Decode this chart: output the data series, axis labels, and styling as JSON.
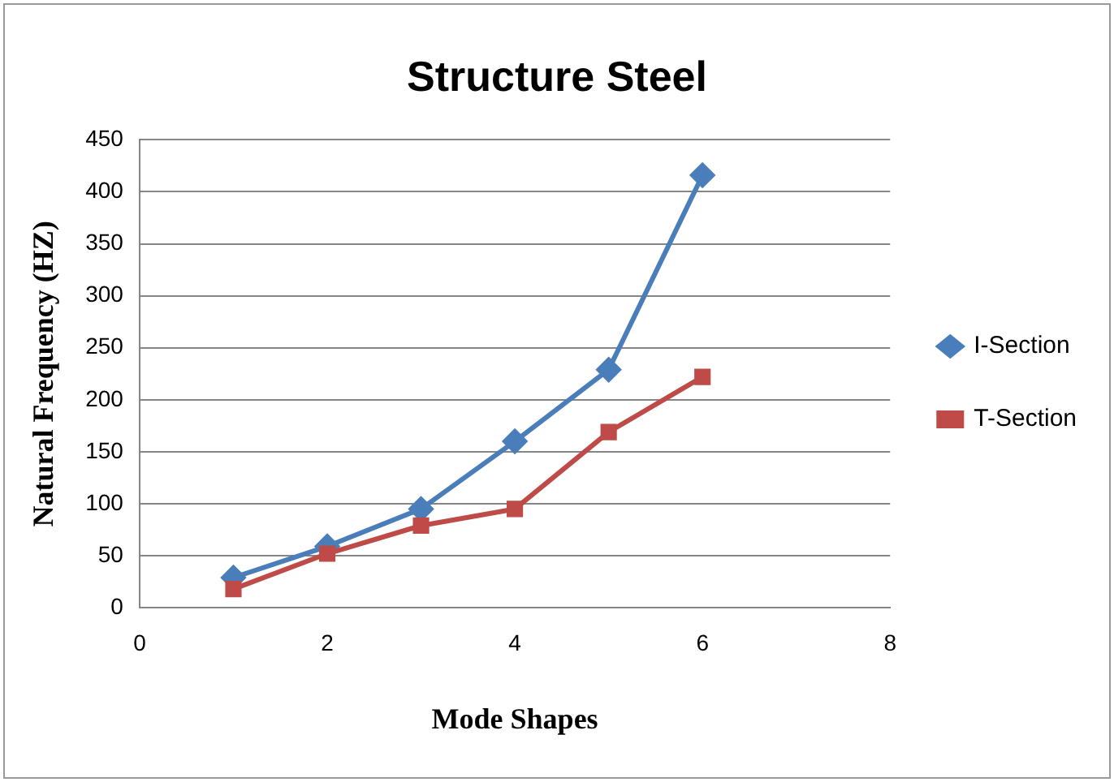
{
  "chart_data": {
    "type": "line",
    "title": "Structure Steel",
    "xlabel": "Mode Shapes",
    "ylabel": "Natural Frequency (HZ)",
    "x": [
      1,
      2,
      3,
      4,
      5,
      6
    ],
    "series": [
      {
        "name": "I-Section",
        "color": "#4a7ebb",
        "marker": "diamond",
        "values": [
          29,
          59,
          95,
          160,
          229,
          416
        ]
      },
      {
        "name": "T-Section",
        "color": "#be4b48",
        "marker": "square",
        "values": [
          18,
          52,
          79,
          95,
          169,
          222
        ]
      }
    ],
    "xlim": [
      0,
      8
    ],
    "xticks": [
      0,
      2,
      4,
      6,
      8
    ],
    "ylim": [
      0,
      450
    ],
    "yticks": [
      0,
      50,
      100,
      150,
      200,
      250,
      300,
      350,
      400,
      450
    ],
    "grid": "y",
    "legend": "right"
  }
}
